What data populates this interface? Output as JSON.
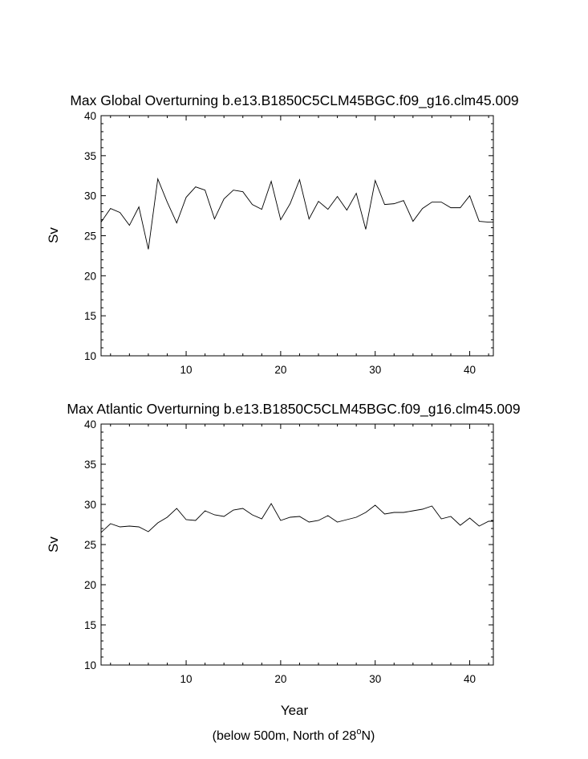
{
  "chart_data": [
    {
      "type": "line",
      "title": "Max Global Overturning b.e13.B1850C5CLM45BGC.f09_g16.clm45.009",
      "ylabel": "Sv",
      "xlim": [
        1,
        42.5
      ],
      "ylim": [
        10,
        40
      ],
      "xticks": [
        10,
        20,
        30,
        40
      ],
      "yticks": [
        10,
        15,
        20,
        25,
        30,
        35,
        40
      ],
      "grid": false,
      "x": [
        1,
        2,
        3,
        4,
        5,
        6,
        7,
        8,
        9,
        10,
        11,
        12,
        13,
        14,
        15,
        16,
        17,
        18,
        19,
        20,
        21,
        22,
        23,
        24,
        25,
        26,
        27,
        28,
        29,
        30,
        31,
        32,
        33,
        34,
        35,
        36,
        37,
        38,
        39,
        40,
        41,
        42
      ],
      "values": [
        26.7,
        28.4,
        27.9,
        26.3,
        28.6,
        23.3,
        32.1,
        29.2,
        26.6,
        29.8,
        31.1,
        30.7,
        27.1,
        29.6,
        30.7,
        30.5,
        28.9,
        28.3,
        31.8,
        27.0,
        29.0,
        32.0,
        27.1,
        29.3,
        28.3,
        29.9,
        28.2,
        30.3,
        25.8,
        31.9,
        28.9,
        29.0,
        29.4,
        26.8,
        28.4,
        29.2,
        29.2,
        28.5,
        28.5,
        30.0,
        26.8,
        26.7
      ]
    },
    {
      "type": "line",
      "title": "Max Atlantic Overturning b.e13.B1850C5CLM45BGC.f09_g16.clm45.009",
      "ylabel": "Sv",
      "xlabel": "Year",
      "xlim": [
        1,
        42.5
      ],
      "ylim": [
        10,
        40
      ],
      "xticks": [
        10,
        20,
        30,
        40
      ],
      "yticks": [
        10,
        15,
        20,
        25,
        30,
        35,
        40
      ],
      "grid": false,
      "x": [
        1,
        2,
        3,
        4,
        5,
        6,
        7,
        8,
        9,
        10,
        11,
        12,
        13,
        14,
        15,
        16,
        17,
        18,
        19,
        20,
        21,
        22,
        23,
        24,
        25,
        26,
        27,
        28,
        29,
        30,
        31,
        32,
        33,
        34,
        35,
        36,
        37,
        38,
        39,
        40,
        41,
        42
      ],
      "values": [
        26.5,
        27.6,
        27.2,
        27.3,
        27.2,
        26.6,
        27.7,
        28.4,
        29.5,
        28.1,
        28.0,
        29.2,
        28.7,
        28.5,
        29.3,
        29.5,
        28.7,
        28.2,
        30.1,
        28.0,
        28.4,
        28.5,
        27.8,
        28.0,
        28.6,
        27.8,
        28.1,
        28.4,
        29.0,
        29.9,
        28.8,
        29.0,
        29.0,
        29.2,
        29.4,
        29.8,
        28.2,
        28.5,
        27.4,
        28.3,
        27.3,
        27.9
      ]
    }
  ],
  "footnote": "(below 500m, North of 28°N)"
}
